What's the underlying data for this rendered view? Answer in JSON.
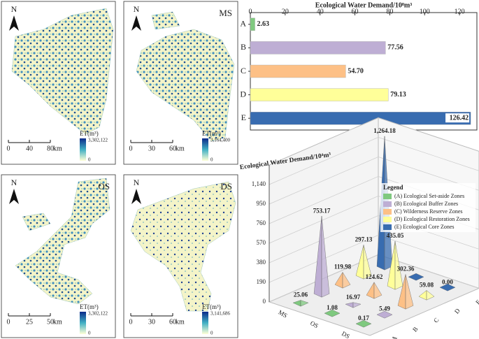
{
  "maps": [
    {
      "north": "N",
      "scale": [
        "0",
        "40",
        "80"
      ],
      "unit": "km",
      "legend_title": "ET(m³)",
      "max": "3,302,122",
      "min": "0"
    },
    {
      "north": "N",
      "label": "MS",
      "scale": [
        "0",
        "30",
        "60"
      ],
      "unit": "km",
      "legend_title": "ET(m³)",
      "max": "3,164,400",
      "min": "0"
    },
    {
      "north": "N",
      "label": "OS",
      "scale": [
        "0",
        "25",
        "50"
      ],
      "unit": "km",
      "legend_title": "ET(m³)",
      "max": "3,302,122",
      "min": "0"
    },
    {
      "north": "N",
      "label": "DS",
      "scale": [
        "0",
        "30",
        "60"
      ],
      "unit": "km",
      "legend_title": "ET(m³)",
      "max": "3,141,686",
      "min": "0"
    }
  ],
  "chart_data": [
    {
      "type": "barh",
      "title": "Ecological Water Demand/10⁸m³",
      "categories": [
        "A",
        "B",
        "C",
        "D",
        "E"
      ],
      "values": [
        2.63,
        77.56,
        54.7,
        79.13,
        126.42
      ],
      "value_labels": [
        "2.63",
        "77.56",
        "54.70",
        "79.13",
        "126.42"
      ],
      "colors": [
        "#7fc97f",
        "#beaed4",
        "#fdc086",
        "#ffff99",
        "#386cb0"
      ],
      "xlim": [
        0,
        130
      ],
      "xticks": [
        0,
        20,
        40,
        60,
        80,
        100,
        120
      ]
    },
    {
      "type": "bar3d",
      "title": "Ecological Water Demand/10⁴m³",
      "categories": [
        "MS",
        "OS",
        "DS"
      ],
      "depth_categories": [
        "A",
        "B",
        "C",
        "D",
        "E"
      ],
      "legend_title": "Legend",
      "series": [
        {
          "name": "(A) Ecological Set-aside Zones",
          "color": "#7fc97f",
          "values": [
            25.06,
            1.08,
            0.17
          ],
          "value_labels": [
            "25.06",
            "1.08",
            "0.17"
          ]
        },
        {
          "name": "(B) Ecological Buffer Zones",
          "color": "#beaed4",
          "values": [
            753.17,
            16.97,
            5.49
          ],
          "value_labels": [
            "753.17",
            "16.97",
            "5.49"
          ]
        },
        {
          "name": "(C) Wilderness Reserve Zones",
          "color": "#fdc086",
          "values": [
            119.98,
            124.62,
            302.36
          ],
          "value_labels": [
            "119.98",
            "124.62",
            "302.36"
          ]
        },
        {
          "name": "(D) Ecological Restoration Zones",
          "color": "#ffff99",
          "values": [
            297.13,
            435.05,
            59.08
          ],
          "value_labels": [
            "297.13",
            "435.05",
            "59.08"
          ]
        },
        {
          "name": "(E) Ecological Core Zones",
          "color": "#386cb0",
          "values": [
            1264.18,
            0,
            0
          ],
          "value_labels": [
            "1,264.18",
            null,
            "0.00"
          ]
        }
      ],
      "ylim": [
        0,
        1330
      ],
      "yticks": [
        0,
        190,
        380,
        570,
        760,
        950,
        {
          "value": 1140,
          "label": "1,140"
        }
      ]
    }
  ]
}
